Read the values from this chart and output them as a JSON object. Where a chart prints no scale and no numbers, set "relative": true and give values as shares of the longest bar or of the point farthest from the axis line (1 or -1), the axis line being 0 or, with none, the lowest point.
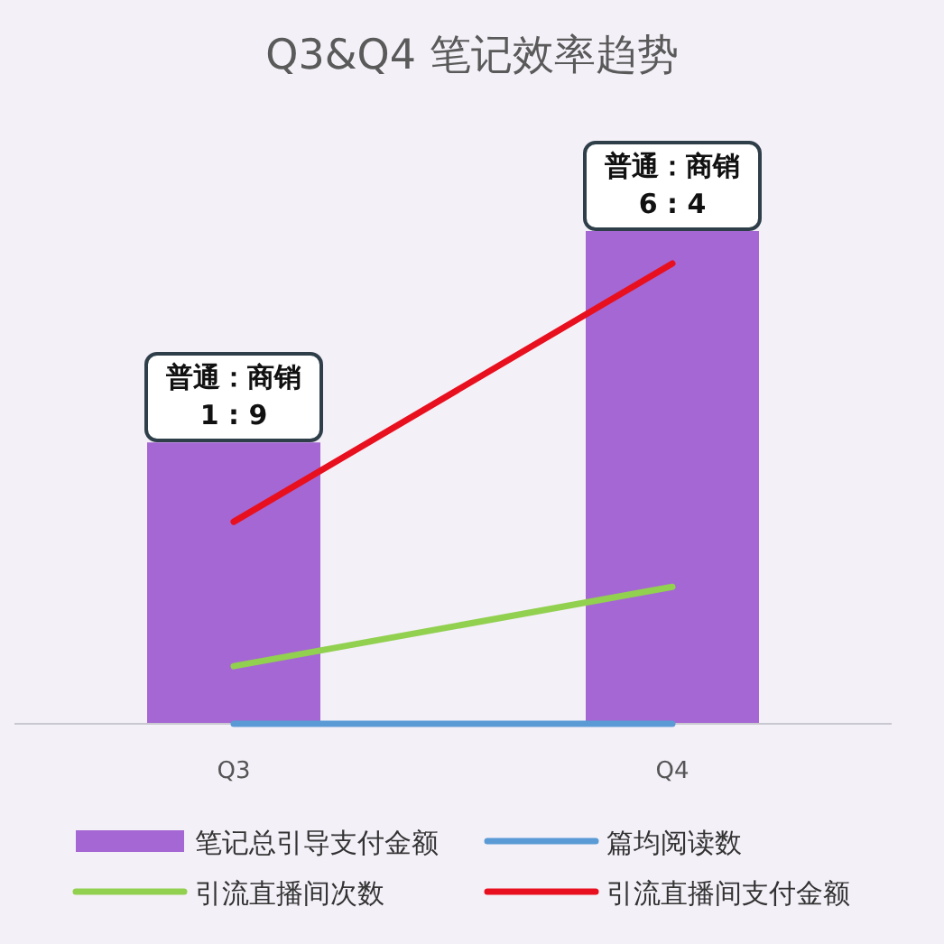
{
  "chart_data": {
    "type": "bar",
    "title": "Q3&Q4 笔记效率趋势",
    "relative": true,
    "categories": [
      "Q3",
      "Q4"
    ],
    "series": [
      {
        "name": "笔记总引导支付金额",
        "color": "#a567d3",
        "values": [
          0.571,
          1
        ]
      },
      {
        "name": "篇均阅读数",
        "type": "line",
        "color": "#5b9bd5",
        "values": [
          0,
          0
        ]
      },
      {
        "name": "引流直播间次数",
        "type": "line",
        "color": "#92d050",
        "values": [
          0.117,
          0.278
        ]
      },
      {
        "name": "引流直播间支付金额",
        "type": "line",
        "color": "#e8101e",
        "values": [
          0.41,
          0.934
        ]
      }
    ],
    "annotations": [
      {
        "text": "普通：商销\n1 : 9",
        "x": "Q3",
        "y": 0.571
      },
      {
        "text": "普通：商销\n6 : 4",
        "x": "Q4",
        "y": 1
      }
    ],
    "legend": "bottom"
  }
}
